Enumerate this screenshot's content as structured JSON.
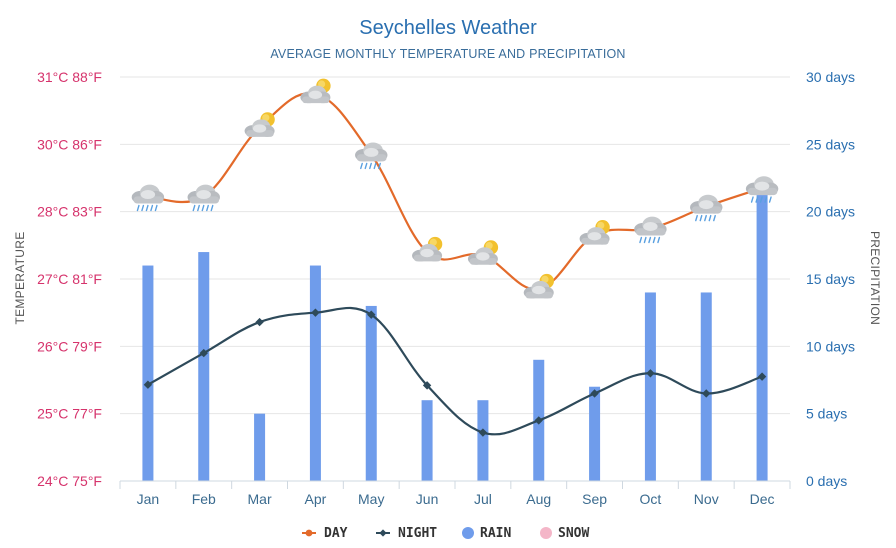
{
  "chart_data": {
    "type": "line",
    "title": "Seychelles Weather",
    "subtitle": "AVERAGE MONTHLY TEMPERATURE AND PRECIPITATION",
    "ylabel_left": "TEMPERATURE",
    "ylabel_right": "PRECIPITATION",
    "categories": [
      "Jan",
      "Feb",
      "Mar",
      "Apr",
      "May",
      "Jun",
      "Jul",
      "Aug",
      "Sep",
      "Oct",
      "Nov",
      "Dec"
    ],
    "left_axis": {
      "ylim": [
        24,
        31
      ],
      "ticks": [
        {
          "value": 24,
          "label": "24°C 75°F"
        },
        {
          "value": 25,
          "label": "25°C 77°F"
        },
        {
          "value": 26,
          "label": "26°C 79°F"
        },
        {
          "value": 27,
          "label": "27°C 81°F"
        },
        {
          "value": 28,
          "label": "28°C 83°F"
        },
        {
          "value": 30,
          "label": "30°C 86°F"
        },
        {
          "value": 31,
          "label": "31°C 88°F"
        }
      ]
    },
    "right_axis": {
      "ylim": [
        0,
        30
      ],
      "ticks": [
        {
          "value": 0,
          "label": "0 days"
        },
        {
          "value": 5,
          "label": "5 days"
        },
        {
          "value": 10,
          "label": "10 days"
        },
        {
          "value": 15,
          "label": "15 days"
        },
        {
          "value": 20,
          "label": "20 days"
        },
        {
          "value": 25,
          "label": "25 days"
        },
        {
          "value": 30,
          "label": "30 days"
        }
      ]
    },
    "series": [
      {
        "name": "DAY",
        "type": "line",
        "axis": "left",
        "color": "#e36a2a",
        "values": [
          28.45,
          28.45,
          30.25,
          30.75,
          29.7,
          27.4,
          27.35,
          26.85,
          27.65,
          27.75,
          28.15,
          28.7
        ]
      },
      {
        "name": "NIGHT",
        "type": "line",
        "axis": "left",
        "color": "#2e4a5a",
        "values": [
          25.43,
          25.9,
          26.36,
          26.5,
          26.47,
          25.42,
          24.72,
          24.9,
          25.3,
          25.6,
          25.3,
          25.55
        ]
      },
      {
        "name": "RAIN",
        "type": "bar",
        "axis": "right",
        "color": "#6f9ceb",
        "values": [
          16,
          17,
          5,
          16,
          13,
          6,
          6,
          9,
          7,
          14,
          14,
          22
        ]
      },
      {
        "name": "SNOW",
        "type": "bar",
        "axis": "right",
        "color": "#f4b6c8",
        "values": [
          0,
          0,
          0,
          0,
          0,
          0,
          0,
          0,
          0,
          0,
          0,
          0
        ]
      }
    ],
    "weather_icons": [
      "rain-cloud",
      "rain-cloud",
      "sun-cloud",
      "sun-cloud",
      "rain-cloud",
      "sun-cloud",
      "sun-cloud",
      "sun-cloud",
      "sun-cloud",
      "rain-cloud",
      "rain-cloud",
      "rain-cloud"
    ],
    "legend": {
      "position": "bottom-center"
    },
    "grid": true
  }
}
